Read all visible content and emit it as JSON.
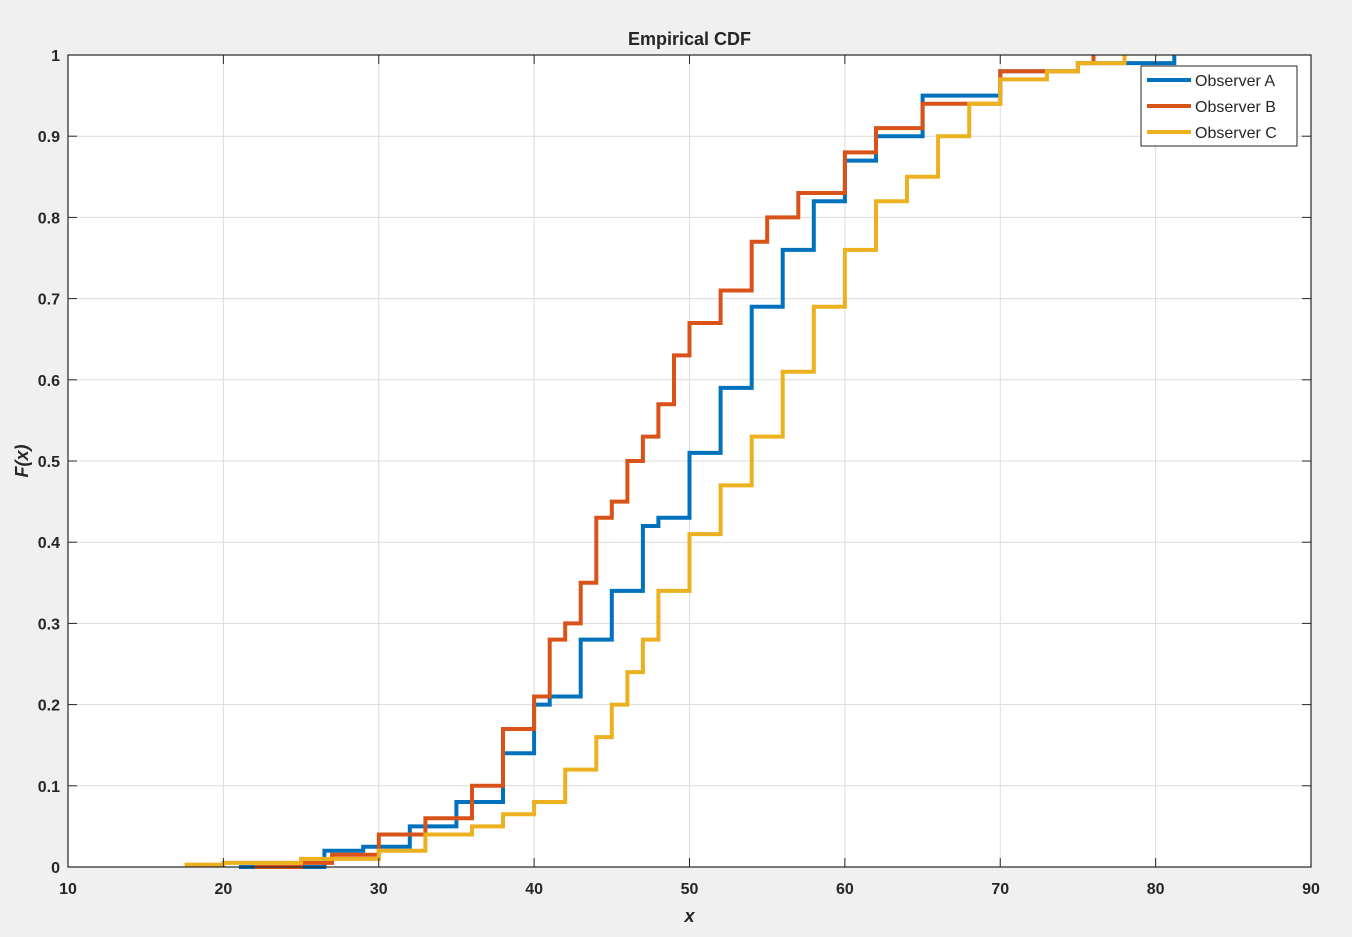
{
  "chart_data": {
    "type": "line",
    "title": "Empirical CDF",
    "xlabel": "x",
    "ylabel_prefix": "F(",
    "ylabel_var": "x",
    "ylabel_suffix": ")",
    "xlim": [
      10,
      90
    ],
    "ylim": [
      0,
      1
    ],
    "xticks": [
      "10",
      "20",
      "30",
      "40",
      "50",
      "60",
      "70",
      "80",
      "90"
    ],
    "yticks": [
      "0",
      "0.1",
      "0.2",
      "0.3",
      "0.4",
      "0.5",
      "0.6",
      "0.7",
      "0.8",
      "0.9",
      "1"
    ],
    "grid": true,
    "legend_position": "top-right",
    "colors": {
      "plot_background": "#ffffff",
      "figure_background": "#f0f0f0",
      "grid": "#dcdcdc",
      "axis": "#262626"
    },
    "series": [
      {
        "name": "Observer A",
        "color": "#0072bd",
        "x": [
          21,
          26.5,
          29,
          32,
          35,
          38,
          40,
          41,
          43,
          45,
          47,
          48,
          50,
          52,
          54,
          56,
          58,
          60,
          62,
          65,
          70,
          75,
          81.2
        ],
        "y": [
          0,
          0.02,
          0.025,
          0.05,
          0.08,
          0.14,
          0.2,
          0.21,
          0.28,
          0.34,
          0.42,
          0.43,
          0.51,
          0.59,
          0.69,
          0.76,
          0.82,
          0.87,
          0.9,
          0.95,
          0.98,
          0.99,
          1.0
        ]
      },
      {
        "name": "Observer B",
        "color": "#d95319",
        "x": [
          22,
          25,
          27,
          30,
          33,
          36,
          38,
          40,
          41,
          42,
          43,
          44,
          45,
          46,
          47,
          48,
          49,
          50,
          52,
          54,
          55,
          57,
          60,
          62,
          65,
          70,
          75,
          76
        ],
        "y": [
          0,
          0.005,
          0.015,
          0.04,
          0.06,
          0.1,
          0.17,
          0.21,
          0.28,
          0.3,
          0.35,
          0.43,
          0.45,
          0.5,
          0.53,
          0.57,
          0.63,
          0.67,
          0.71,
          0.77,
          0.8,
          0.83,
          0.88,
          0.91,
          0.94,
          0.98,
          0.99,
          1.0
        ]
      },
      {
        "name": "Observer C",
        "color": "#edb120",
        "x": [
          17.5,
          20,
          25,
          30,
          33,
          36,
          38,
          40,
          42,
          44,
          45,
          46,
          47,
          48,
          50,
          52,
          54,
          56,
          58,
          60,
          62,
          64,
          66,
          68,
          70,
          73,
          75,
          78
        ],
        "y": [
          0.003,
          0.005,
          0.01,
          0.02,
          0.04,
          0.05,
          0.065,
          0.08,
          0.12,
          0.16,
          0.2,
          0.24,
          0.28,
          0.34,
          0.41,
          0.47,
          0.53,
          0.61,
          0.69,
          0.76,
          0.82,
          0.85,
          0.9,
          0.94,
          0.97,
          0.98,
          0.99,
          1.0
        ]
      }
    ]
  }
}
